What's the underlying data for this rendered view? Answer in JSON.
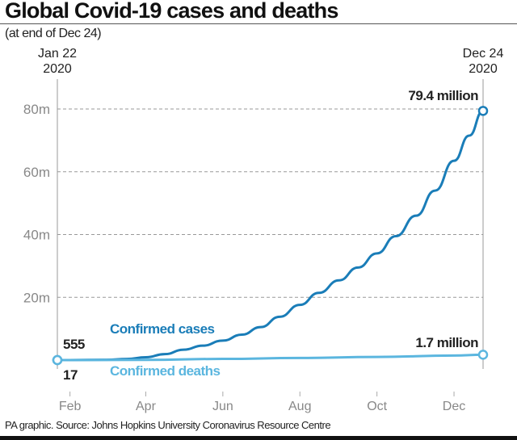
{
  "title": "Global Covid-19 cases and deaths",
  "subtitle": "(at end of Dec 24)",
  "source": "PA graphic. Source: Johns Hopkins University Coronavirus Resource Centre",
  "colors": {
    "cases": "#1a7db8",
    "deaths": "#5bb6df",
    "grid": "#999999",
    "axis_text": "#888888"
  },
  "chart_data": {
    "type": "line",
    "title": "Global Covid-19 cases and deaths",
    "xlabel": "",
    "ylabel": "",
    "x_start_label": [
      "Jan 22",
      "2020"
    ],
    "x_end_label": [
      "Dec 24",
      "2020"
    ],
    "x_range_days": [
      0,
      337
    ],
    "ylim": [
      0,
      80
    ],
    "y_ticks": [
      {
        "value": 20,
        "label": "20m"
      },
      {
        "value": 40,
        "label": "40m"
      },
      {
        "value": 60,
        "label": "60m"
      },
      {
        "value": 80,
        "label": "80m"
      }
    ],
    "x_ticks": [
      {
        "day": 10,
        "label": "Feb"
      },
      {
        "day": 70,
        "label": "Apr"
      },
      {
        "day": 131,
        "label": "Jun"
      },
      {
        "day": 192,
        "label": "Aug"
      },
      {
        "day": 253,
        "label": "Oct"
      },
      {
        "day": 314,
        "label": "Dec"
      }
    ],
    "series": [
      {
        "name": "Confirmed cases",
        "unit": "million",
        "x": [
          0,
          10,
          39,
          55,
          70,
          85,
          100,
          115,
          131,
          146,
          161,
          176,
          192,
          207,
          223,
          238,
          253,
          268,
          284,
          299,
          314,
          326,
          337
        ],
        "values": [
          0.0006,
          0.01,
          0.09,
          0.35,
          0.9,
          1.9,
          3.3,
          4.6,
          6.2,
          8.1,
          10.5,
          13.8,
          17.6,
          21.4,
          25.4,
          29.5,
          34,
          39.5,
          46,
          54,
          63.5,
          71.5,
          79.4
        ],
        "start_label": "555",
        "end_label": "79.4 million"
      },
      {
        "name": "Confirmed deaths",
        "unit": "million",
        "x": [
          0,
          70,
          131,
          192,
          253,
          314,
          337
        ],
        "values": [
          1.7e-05,
          0.05,
          0.37,
          0.68,
          1.01,
          1.46,
          1.7
        ],
        "start_label": "17",
        "end_label": "1.7 million"
      }
    ]
  }
}
